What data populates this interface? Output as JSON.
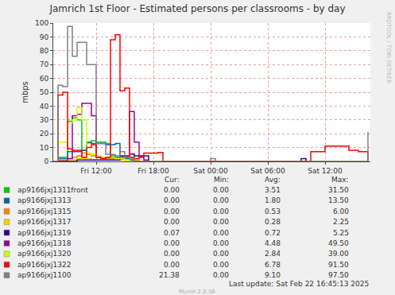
{
  "chart_data": {
    "type": "line",
    "line_style": "step",
    "title": "Jamrich 1st Floor - Estimated persons per classrooms - by day",
    "y_label": "mbps",
    "side_text": "RRDTOOL / TOBI OETIKER",
    "footer": "Last update: Sat Feb 22 16:45:13 2025",
    "credit": "Munin 2.0.56",
    "grid": true,
    "xlim": [
      7.5,
      40.75
    ],
    "xticks": [
      {
        "value": 12,
        "label": "Fri 12:00"
      },
      {
        "value": 18,
        "label": "Fri 18:00"
      },
      {
        "value": 24,
        "label": "Sat 00:00"
      },
      {
        "value": 30,
        "label": "Sat 06:00"
      },
      {
        "value": 36,
        "label": "Sat 12:00"
      }
    ],
    "ylim": [
      0,
      100
    ],
    "yticks": [
      0,
      10,
      20,
      30,
      40,
      50,
      60,
      70,
      80,
      90,
      100
    ],
    "stats_header": [
      "Cur:",
      "Min:",
      "Avg:",
      "Max:"
    ],
    "x": [
      7.5,
      8,
      8.5,
      9,
      9.5,
      10,
      10.5,
      11,
      11.5,
      12,
      12.5,
      13,
      13.5,
      14,
      14.5,
      15,
      15.5,
      16,
      16.5,
      17,
      17.5,
      18,
      18.5,
      19,
      19.5,
      20,
      20.5,
      21,
      21.5,
      22,
      22.5,
      23,
      23.5,
      24,
      24.5,
      25,
      25.5,
      26,
      26.5,
      27,
      27.5,
      28,
      28.5,
      29,
      29.5,
      30,
      30.5,
      31,
      31.5,
      32,
      32.5,
      33,
      33.5,
      34,
      34.5,
      35,
      35.5,
      36,
      36.5,
      37,
      37.5,
      38,
      38.5,
      39,
      39.5,
      40,
      40.5
    ],
    "series": [
      {
        "name": "ap9166jxj1311front",
        "color": "#00CC00",
        "stats": [
          "0.00",
          "0.00",
          "3.51",
          "31.50"
        ],
        "values": [
          0,
          3,
          3,
          29,
          31.5,
          30,
          8,
          14,
          15,
          14,
          14,
          13,
          4,
          4,
          3,
          2,
          1,
          0,
          0,
          0,
          0,
          0,
          0,
          0,
          0,
          0,
          0,
          0,
          0,
          0,
          0,
          0,
          0,
          0,
          0,
          0,
          0,
          0,
          0,
          0,
          0,
          0,
          0,
          0,
          0,
          0,
          0,
          0,
          0,
          0,
          0,
          0,
          0,
          0,
          0,
          0,
          0,
          0,
          0,
          0,
          0,
          0,
          0,
          0,
          0,
          0,
          0
        ]
      },
      {
        "name": "ap9166jxj1313",
        "color": "#0066B3",
        "stats": [
          "0.00",
          "0.00",
          "1.80",
          "13.50"
        ],
        "values": [
          0,
          2,
          2,
          7,
          7,
          7,
          8,
          13.5,
          13,
          13,
          13,
          12,
          12,
          13,
          4,
          2,
          1,
          0,
          0,
          0,
          0,
          0,
          0,
          0,
          0,
          0,
          0,
          0,
          0,
          0,
          0,
          0,
          0,
          0,
          0,
          0,
          0,
          0,
          0,
          0,
          0,
          0,
          0,
          0,
          0,
          0,
          0,
          0,
          0,
          0,
          0,
          0,
          0,
          0,
          0,
          0,
          0,
          0,
          0,
          0,
          0,
          0,
          0,
          0,
          0,
          0,
          0
        ]
      },
      {
        "name": "ap9166jxj1315",
        "color": "#FF8000",
        "stats": [
          "0.00",
          "0.00",
          "0.53",
          "6.00"
        ],
        "values": [
          0,
          1,
          1,
          2,
          3,
          4,
          6,
          5,
          4,
          3,
          3,
          2,
          2,
          2,
          2,
          3,
          2,
          1,
          0,
          0,
          0,
          0,
          0,
          0,
          0,
          0,
          0,
          0,
          0,
          0,
          0,
          0,
          0,
          0,
          0,
          0,
          0,
          0,
          0,
          0,
          0,
          0,
          0,
          0,
          0,
          0,
          0,
          0,
          0,
          0,
          0,
          0,
          0,
          0,
          0,
          0,
          0,
          0,
          0,
          0,
          0,
          0,
          0,
          0,
          0,
          0,
          0
        ]
      },
      {
        "name": "ap9166jxj1317",
        "color": "#FFCC00",
        "stats": [
          "0.00",
          "0.00",
          "0.28",
          "2.25"
        ],
        "values": [
          0,
          0,
          0,
          1,
          1,
          2,
          2.25,
          2,
          1,
          1,
          1,
          1,
          1,
          1,
          1,
          0,
          0,
          0,
          0,
          0,
          0,
          0,
          0,
          0,
          0,
          0,
          0,
          0,
          0,
          0,
          0,
          0,
          0,
          0,
          0,
          0,
          0,
          0,
          0,
          0,
          0,
          0,
          0,
          0,
          0,
          0,
          0,
          0,
          0,
          0,
          0,
          0,
          0,
          0,
          0,
          0,
          0,
          0,
          0,
          0,
          0,
          0,
          0,
          0,
          0,
          0,
          0
        ]
      },
      {
        "name": "ap9166jxj1319",
        "color": "#330099",
        "stats": [
          "0.07",
          "0.00",
          "0.72",
          "5.25"
        ],
        "values": [
          0,
          0,
          0,
          0,
          0,
          1,
          1,
          1,
          1,
          1,
          1,
          1,
          1,
          1,
          2,
          4,
          5.25,
          4,
          4,
          4,
          0,
          0,
          0,
          0,
          0,
          0,
          0,
          0,
          0,
          0,
          0,
          0,
          0,
          0,
          0,
          0,
          0,
          0,
          0,
          0,
          0,
          0,
          0,
          0,
          0,
          0,
          0,
          0,
          0,
          0,
          0,
          0,
          2,
          0,
          0,
          0,
          0,
          0,
          0,
          0,
          0,
          0,
          0,
          0,
          0,
          0,
          0
        ]
      },
      {
        "name": "ap9166jxj1318",
        "color": "#990099",
        "stats": [
          "0.00",
          "0.00",
          "4.48",
          "49.50"
        ],
        "values": [
          0,
          0,
          0,
          2,
          33,
          34,
          42,
          42,
          33,
          3,
          3,
          3,
          3,
          3,
          4,
          3,
          36,
          14,
          3,
          1,
          0,
          0,
          0,
          0,
          0,
          0,
          0,
          0,
          0,
          0,
          0,
          0,
          0,
          0,
          0,
          0,
          0,
          0,
          0,
          0,
          0,
          0,
          0,
          0,
          0,
          0,
          0,
          0,
          0,
          0,
          0,
          0,
          0,
          0,
          0,
          0,
          0,
          0,
          0,
          0,
          0,
          0,
          0,
          0,
          0,
          0,
          0
        ]
      },
      {
        "name": "ap9166jxj1320",
        "color": "#CCFF00",
        "stats": [
          "0.00",
          "0.00",
          "2.84",
          "39.00"
        ],
        "values": [
          0,
          14,
          14,
          28,
          30,
          39,
          30,
          6,
          5,
          4,
          3,
          3,
          3,
          2,
          2,
          1,
          0,
          0,
          0,
          0,
          0,
          0,
          0,
          0,
          0,
          0,
          0,
          0,
          0,
          0,
          0,
          0,
          0,
          0,
          0,
          0,
          0,
          0,
          0,
          0,
          0,
          0,
          0,
          0,
          0,
          0,
          0,
          0,
          0,
          0,
          0,
          0,
          0,
          0,
          0,
          0,
          0,
          0,
          0,
          0,
          0,
          0,
          0,
          0,
          0,
          0,
          0
        ]
      },
      {
        "name": "ap9166jxj1322",
        "color": "#FF0000",
        "stats": [
          "0.00",
          "0.00",
          "6.78",
          "91.50"
        ],
        "values": [
          0,
          48,
          50,
          9,
          8,
          8,
          3,
          10,
          12,
          3,
          2,
          3,
          88,
          91.5,
          51,
          53,
          3,
          2,
          4,
          6,
          6,
          6,
          6.5,
          0,
          0,
          0,
          0,
          0,
          0,
          0,
          0,
          0,
          0,
          0,
          0,
          0,
          0,
          0,
          0,
          0,
          0,
          0,
          0,
          0,
          0,
          0,
          0,
          0,
          0,
          0,
          0,
          0,
          0,
          0,
          7,
          7,
          7,
          11,
          11,
          11,
          11,
          11,
          8,
          8,
          7,
          7,
          0
        ]
      },
      {
        "name": "ap9166jxj1100",
        "color": "#808080",
        "stats": [
          "21.38",
          "0.00",
          "9.10",
          "97.50"
        ],
        "values": [
          0,
          55,
          54,
          97.5,
          76,
          86,
          86,
          70,
          70,
          13,
          13,
          5,
          5,
          3,
          7,
          3,
          2,
          0,
          0,
          0,
          0,
          0,
          0,
          0,
          0,
          0,
          0,
          0,
          0,
          0,
          0,
          0,
          0,
          2,
          0,
          0,
          0,
          0,
          0,
          0,
          0,
          0,
          0,
          0,
          0,
          0,
          0,
          0,
          0,
          0,
          0,
          0,
          0,
          0,
          0,
          0,
          0,
          0,
          0,
          0,
          0,
          0,
          0,
          0,
          0,
          0,
          21.38
        ]
      }
    ]
  }
}
